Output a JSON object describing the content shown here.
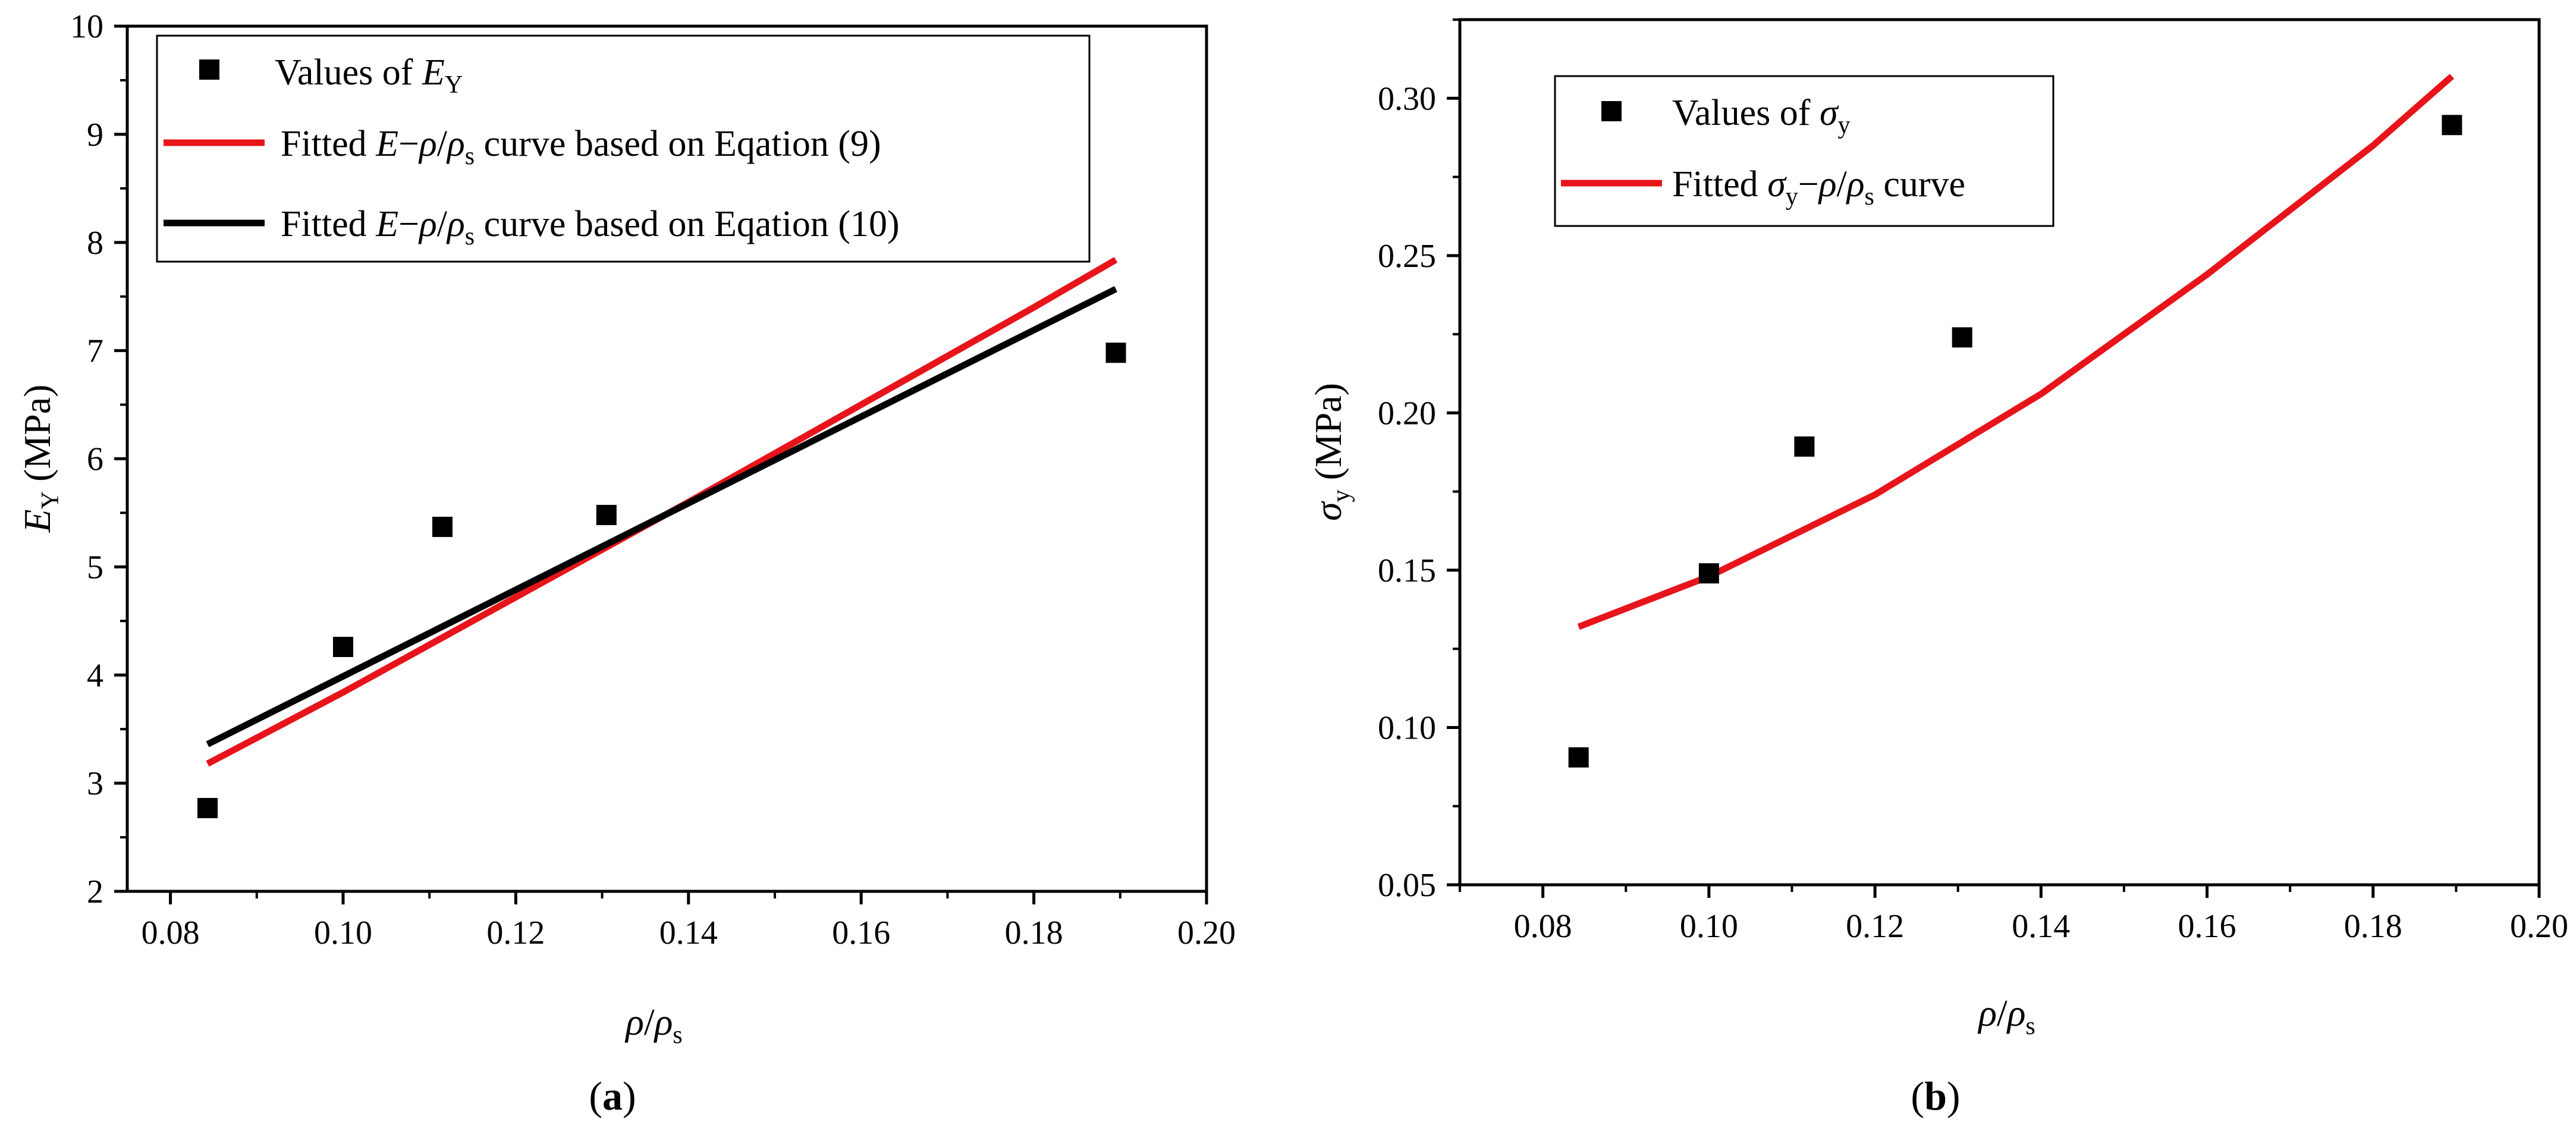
{
  "chart_data": [
    {
      "id": "a",
      "type": "scatter",
      "panel_label": {
        "open": "(",
        "letter": "a",
        "close": ")"
      },
      "xlim": [
        0.075,
        0.2
      ],
      "ylim": [
        2,
        10
      ],
      "x_ticks": [
        0.08,
        0.1,
        0.12,
        0.14,
        0.16,
        0.18,
        0.2
      ],
      "y_ticks": [
        2,
        3,
        4,
        5,
        6,
        7,
        8,
        9,
        10
      ],
      "x_tick_labels": [
        "0.08",
        "0.10",
        "0.12",
        "0.14",
        "0.16",
        "0.18",
        "0.20"
      ],
      "y_tick_labels": [
        "2",
        "3",
        "4",
        "5",
        "6",
        "7",
        "8",
        "9",
        "10"
      ],
      "xlabel": {
        "rho": "ρ",
        "slash": "/",
        "rho2": "ρ",
        "sub": "s"
      },
      "ylabel": {
        "sym": "E",
        "sub": "Y",
        "unit": " (MPa)"
      },
      "legend_position": "top-left",
      "series": [
        {
          "kind": "points",
          "color": "#000000",
          "legend": {
            "prefix": "Values of ",
            "sym": "E",
            "sub": "Y"
          },
          "points": [
            {
              "x": 0.0843,
              "y": 2.77
            },
            {
              "x": 0.1,
              "y": 4.26
            },
            {
              "x": 0.1115,
              "y": 5.37
            },
            {
              "x": 0.1305,
              "y": 5.48
            },
            {
              "x": 0.1895,
              "y": 6.98
            }
          ]
        },
        {
          "kind": "line",
          "color": "#e8141b",
          "legend": {
            "pre": "Fitted ",
            "e": "E",
            "dash": "−",
            "r1": "ρ",
            "sl": "/",
            "r2": "ρ",
            "sub": "s",
            "post": " curve based on Eqation (9)"
          },
          "points": [
            {
              "x": 0.0843,
              "y": 3.18
            },
            {
              "x": 0.1,
              "y": 3.84
            },
            {
              "x": 0.12,
              "y": 4.72
            },
            {
              "x": 0.14,
              "y": 5.6
            },
            {
              "x": 0.16,
              "y": 6.5
            },
            {
              "x": 0.18,
              "y": 7.4
            },
            {
              "x": 0.1895,
              "y": 7.84
            }
          ]
        },
        {
          "kind": "line",
          "color": "#000000",
          "legend": {
            "pre": "Fitted ",
            "e": "E",
            "dash": "−",
            "r1": "ρ",
            "sl": "/",
            "r2": "ρ",
            "sub": "s",
            "post": " curve based on Eqation (10)"
          },
          "points": [
            {
              "x": 0.0843,
              "y": 3.36
            },
            {
              "x": 0.1895,
              "y": 7.57
            }
          ]
        }
      ]
    },
    {
      "id": "b",
      "type": "scatter",
      "panel_label": {
        "open": "(",
        "letter": "b",
        "close": ")"
      },
      "xlim": [
        0.07,
        0.2
      ],
      "ylim": [
        0.05,
        0.325
      ],
      "x_ticks": [
        0.08,
        0.1,
        0.12,
        0.14,
        0.16,
        0.18,
        0.2
      ],
      "y_ticks": [
        0.05,
        0.1,
        0.15,
        0.2,
        0.25,
        0.3
      ],
      "x_tick_labels": [
        "0.08",
        "0.10",
        "0.12",
        "0.14",
        "0.16",
        "0.18",
        "0.20"
      ],
      "y_tick_labels": [
        "0.05",
        "0.10",
        "0.15",
        "0.20",
        "0.25",
        "0.30"
      ],
      "xlabel": {
        "rho": "ρ",
        "slash": "/",
        "rho2": "ρ",
        "sub": "s"
      },
      "ylabel": {
        "sym": "σ",
        "sub": "y",
        "unit": " (MPa)"
      },
      "legend_position": "top-left",
      "series": [
        {
          "kind": "points",
          "color": "#000000",
          "legend": {
            "prefix": "Values of ",
            "sym": "σ",
            "sub": "y"
          },
          "points": [
            {
              "x": 0.0843,
              "y": 0.0905
            },
            {
              "x": 0.1,
              "y": 0.149
            },
            {
              "x": 0.1115,
              "y": 0.1893
            },
            {
              "x": 0.1305,
              "y": 0.224
            },
            {
              "x": 0.1895,
              "y": 0.2915
            }
          ]
        },
        {
          "kind": "line",
          "color": "#e8141b",
          "legend": {
            "pre": "Fitted ",
            "sym": "σ",
            "sub": "y",
            "dash": "−",
            "r1": "ρ",
            "sl": "/",
            "r2": "ρ",
            "sub2": "s",
            "post": " curve"
          },
          "points": [
            {
              "x": 0.0843,
              "y": 0.132
            },
            {
              "x": 0.1,
              "y": 0.148
            },
            {
              "x": 0.12,
              "y": 0.174
            },
            {
              "x": 0.14,
              "y": 0.206
            },
            {
              "x": 0.16,
              "y": 0.244
            },
            {
              "x": 0.18,
              "y": 0.285
            },
            {
              "x": 0.1895,
              "y": 0.307
            }
          ]
        }
      ]
    }
  ]
}
